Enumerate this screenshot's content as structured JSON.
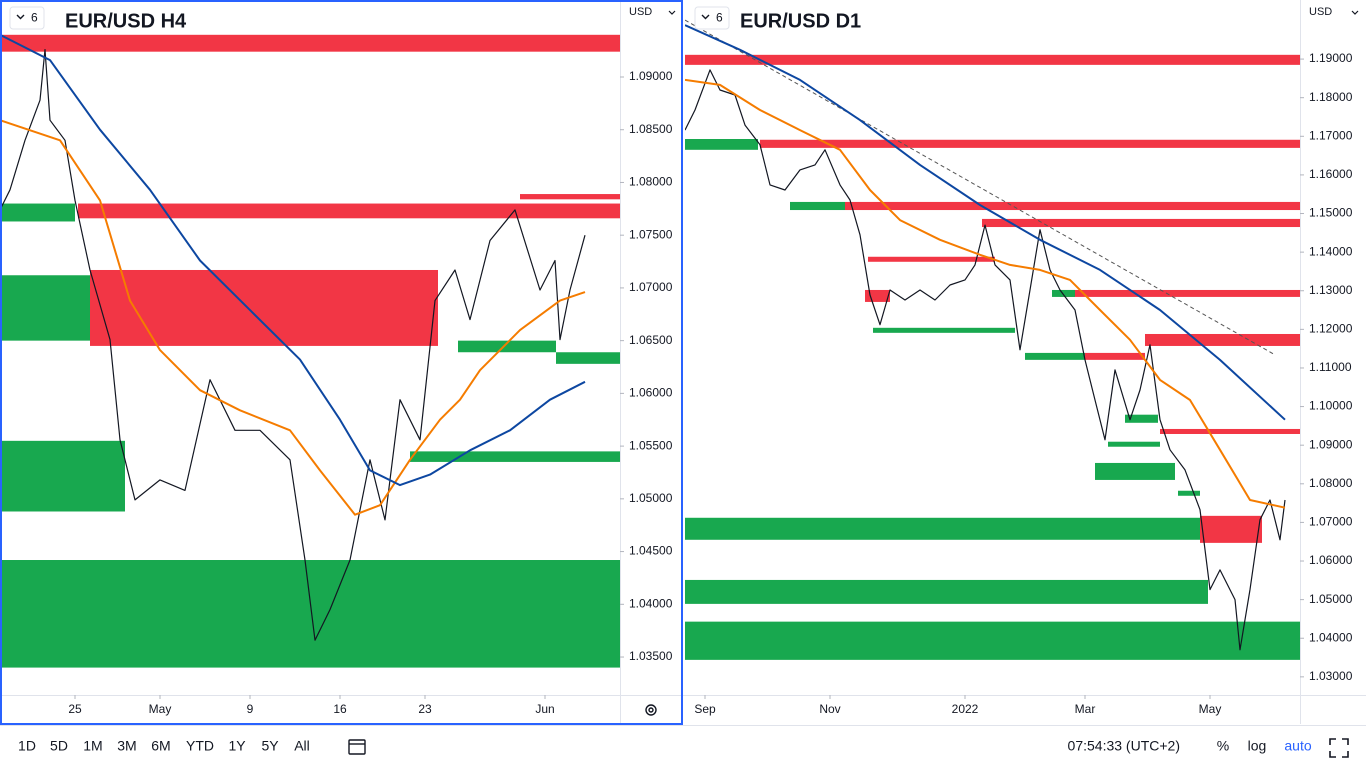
{
  "chart_data": [
    {
      "type": "line",
      "title": "EUR/USD H4",
      "badge": "6",
      "currency": "USD",
      "xlim": [
        0,
        124
      ],
      "xticks": [
        {
          "value": 15,
          "label": "25"
        },
        {
          "value": 32,
          "label": "May"
        },
        {
          "value": 50,
          "label": "9"
        },
        {
          "value": 68,
          "label": "16"
        },
        {
          "value": 85,
          "label": "23"
        },
        {
          "value": 109,
          "label": "Jun"
        }
      ],
      "ylim": [
        1.0314,
        1.0973
      ],
      "yticks": [
        {
          "value": 1.035,
          "label": "1.03500"
        },
        {
          "value": 1.04,
          "label": "1.04000"
        },
        {
          "value": 1.045,
          "label": "1.04500"
        },
        {
          "value": 1.05,
          "label": "1.05000"
        },
        {
          "value": 1.055,
          "label": "1.05500"
        },
        {
          "value": 1.06,
          "label": "1.06000"
        },
        {
          "value": 1.065,
          "label": "1.06500"
        },
        {
          "value": 1.07,
          "label": "1.07000"
        },
        {
          "value": 1.075,
          "label": "1.07500"
        },
        {
          "value": 1.08,
          "label": "1.08000"
        },
        {
          "value": 1.085,
          "label": "1.08500"
        },
        {
          "value": 1.09,
          "label": "1.09000"
        }
      ],
      "series": [
        {
          "color": "#131722",
          "x": [
            0,
            2,
            5,
            8,
            9,
            10,
            13,
            15,
            18,
            22,
            24,
            27,
            32,
            37,
            42,
            47,
            52,
            58,
            61,
            63,
            66,
            70,
            74,
            77,
            80,
            84,
            87,
            91,
            94,
            98,
            103,
            108,
            111,
            112,
            114,
            117
          ],
          "values": [
            1.0774,
            1.0793,
            1.084,
            1.0878,
            1.0926,
            1.0859,
            1.084,
            1.0783,
            1.0717,
            1.0651,
            1.0556,
            1.0499,
            1.0518,
            1.0508,
            1.0613,
            1.0565,
            1.0565,
            1.0537,
            1.0442,
            1.0366,
            1.0395,
            1.0442,
            1.0537,
            1.048,
            1.0594,
            1.0556,
            1.0688,
            1.0717,
            1.067,
            1.0745,
            1.0774,
            1.0698,
            1.0726,
            1.0651,
            1.0698,
            1.075
          ]
        },
        {
          "color": "#f57c00",
          "x": [
            0,
            12,
            20,
            26,
            32,
            40,
            48,
            58,
            64,
            71,
            76,
            82,
            88,
            92,
            96,
            104,
            112,
            117
          ],
          "values": [
            1.0859,
            1.084,
            1.0783,
            1.0688,
            1.0641,
            1.0603,
            1.0584,
            1.0565,
            1.0527,
            1.0485,
            1.0494,
            1.0537,
            1.0575,
            1.0594,
            1.0622,
            1.066,
            1.0688,
            1.0696
          ]
        },
        {
          "color": "#0d47a1",
          "x": [
            0,
            10,
            20,
            30,
            40,
            50,
            60,
            68,
            74,
            80,
            86,
            94,
            102,
            110,
            117
          ],
          "values": [
            1.094,
            1.0916,
            1.085,
            1.0793,
            1.0726,
            1.0679,
            1.0632,
            1.0575,
            1.0527,
            1.0513,
            1.0523,
            1.0546,
            1.0565,
            1.0594,
            1.0611
          ]
        }
      ],
      "zones": [
        {
          "color": "#f23645",
          "x": [
            0,
            124
          ],
          "y": [
            1.0924,
            1.094
          ]
        },
        {
          "color": "#f23645",
          "x": [
            104,
            124
          ],
          "y": [
            1.0784,
            1.0789
          ]
        },
        {
          "color": "#f23645",
          "x": [
            15.6,
            124
          ],
          "y": [
            1.0766,
            1.078
          ]
        },
        {
          "color": "#18a84f",
          "x": [
            0,
            15
          ],
          "y": [
            1.0763,
            1.078
          ]
        },
        {
          "color": "#f23645",
          "x": [
            18,
            87.6
          ],
          "y": [
            1.0645,
            1.0717
          ]
        },
        {
          "color": "#18a84f",
          "x": [
            0,
            18
          ],
          "y": [
            1.065,
            1.0712
          ]
        },
        {
          "color": "#18a84f",
          "x": [
            91.6,
            111.2
          ],
          "y": [
            1.0639,
            1.065
          ]
        },
        {
          "color": "#18a84f",
          "x": [
            111.2,
            124
          ],
          "y": [
            1.0628,
            1.0639
          ]
        },
        {
          "color": "#18a84f",
          "x": [
            0,
            25
          ],
          "y": [
            1.0488,
            1.0555
          ]
        },
        {
          "color": "#18a84f",
          "x": [
            82,
            124
          ],
          "y": [
            1.0535,
            1.0545
          ]
        },
        {
          "color": "#18a84f",
          "x": [
            0,
            124
          ],
          "y": [
            1.034,
            1.0442
          ]
        }
      ]
    },
    {
      "type": "line",
      "title": "EUR/USD D1",
      "badge": "6",
      "currency": "USD",
      "xlim": [
        0,
        123
      ],
      "xticks": [
        {
          "value": 4,
          "label": "Sep"
        },
        {
          "value": 29,
          "label": "Nov"
        },
        {
          "value": 56,
          "label": "2022"
        },
        {
          "value": 80,
          "label": "Mar"
        },
        {
          "value": 105,
          "label": "May"
        }
      ],
      "ylim": [
        1.0253,
        1.2053
      ],
      "yticks": [
        {
          "value": 1.03,
          "label": "1.03000"
        },
        {
          "value": 1.04,
          "label": "1.04000"
        },
        {
          "value": 1.05,
          "label": "1.05000"
        },
        {
          "value": 1.06,
          "label": "1.06000"
        },
        {
          "value": 1.07,
          "label": "1.07000"
        },
        {
          "value": 1.08,
          "label": "1.08000"
        },
        {
          "value": 1.09,
          "label": "1.09000"
        },
        {
          "value": 1.1,
          "label": "1.10000"
        },
        {
          "value": 1.11,
          "label": "1.11000"
        },
        {
          "value": 1.12,
          "label": "1.12000"
        },
        {
          "value": 1.13,
          "label": "1.13000"
        },
        {
          "value": 1.14,
          "label": "1.14000"
        },
        {
          "value": 1.15,
          "label": "1.15000"
        },
        {
          "value": 1.16,
          "label": "1.16000"
        },
        {
          "value": 1.17,
          "label": "1.17000"
        },
        {
          "value": 1.18,
          "label": "1.18000"
        },
        {
          "value": 1.19,
          "label": "1.19000"
        }
      ],
      "series": [
        {
          "color": "#131722",
          "x": [
            0,
            2,
            5,
            7,
            10,
            12,
            15,
            17,
            20,
            23,
            26,
            28,
            31,
            33,
            35,
            37,
            39,
            41,
            44,
            47,
            50,
            53,
            56,
            58,
            60,
            62,
            65,
            67,
            69,
            71,
            73,
            75,
            78,
            80,
            82,
            84,
            86,
            89,
            91,
            93,
            95,
            97,
            100,
            103,
            105,
            107,
            110,
            111,
            113,
            115,
            117,
            119,
            120
          ],
          "values": [
            1.1716,
            1.1768,
            1.1872,
            1.182,
            1.1807,
            1.1729,
            1.1678,
            1.1574,
            1.1561,
            1.1613,
            1.1626,
            1.1665,
            1.1574,
            1.1535,
            1.1445,
            1.1289,
            1.1212,
            1.1302,
            1.1276,
            1.1302,
            1.1276,
            1.1315,
            1.1328,
            1.1367,
            1.147,
            1.1367,
            1.1328,
            1.1147,
            1.1302,
            1.1458,
            1.1354,
            1.1302,
            1.125,
            1.1121,
            1.1017,
            1.0914,
            1.1095,
            1.0966,
            1.1043,
            1.116,
            1.0966,
            1.0888,
            1.0836,
            1.0733,
            1.0526,
            1.0577,
            1.05,
            1.037,
            1.0526,
            1.0707,
            1.0758,
            1.0655,
            1.0758
          ]
        },
        {
          "color": "#f57c00",
          "x": [
            0,
            7,
            15,
            23,
            31,
            37,
            43,
            51,
            59,
            65,
            71,
            77,
            83,
            89,
            95,
            101,
            107,
            113,
            120
          ],
          "values": [
            1.1846,
            1.1833,
            1.1768,
            1.1716,
            1.1665,
            1.1561,
            1.1483,
            1.1432,
            1.1393,
            1.1367,
            1.1354,
            1.1328,
            1.125,
            1.1173,
            1.1069,
            1.1017,
            1.0888,
            1.0758,
            1.0738
          ]
        },
        {
          "color": "#0d47a1",
          "x": [
            0,
            11,
            23,
            35,
            47,
            59,
            71,
            83,
            95,
            107,
            120
          ],
          "values": [
            1.1988,
            1.1924,
            1.1846,
            1.1742,
            1.1626,
            1.1522,
            1.1432,
            1.1354,
            1.125,
            1.1121,
            1.0966
          ]
        }
      ],
      "trendline": {
        "color": "#555555",
        "x": [
          0,
          118
        ],
        "y": [
          1.2001,
          1.1134
        ]
      },
      "zones": [
        {
          "color": "#f23645",
          "x": [
            0,
            123
          ],
          "y": [
            1.1885,
            1.1911
          ]
        },
        {
          "color": "#18a84f",
          "x": [
            0,
            14.6
          ],
          "y": [
            1.1665,
            1.1693
          ]
        },
        {
          "color": "#f23645",
          "x": [
            15,
            123
          ],
          "y": [
            1.167,
            1.1691
          ]
        },
        {
          "color": "#18a84f",
          "x": [
            21,
            32
          ],
          "y": [
            1.1509,
            1.153
          ]
        },
        {
          "color": "#f23645",
          "x": [
            32,
            123
          ],
          "y": [
            1.1509,
            1.153
          ]
        },
        {
          "color": "#f23645",
          "x": [
            59.4,
            123
          ],
          "y": [
            1.1465,
            1.1486
          ]
        },
        {
          "color": "#f23645",
          "x": [
            36.6,
            62
          ],
          "y": [
            1.1375,
            1.1388
          ]
        },
        {
          "color": "#f23645",
          "x": [
            36,
            41
          ],
          "y": [
            1.1271,
            1.1302
          ]
        },
        {
          "color": "#f23645",
          "x": [
            75,
            123
          ],
          "y": [
            1.1284,
            1.1302
          ]
        },
        {
          "color": "#18a84f",
          "x": [
            73.4,
            78
          ],
          "y": [
            1.1284,
            1.1302
          ]
        },
        {
          "color": "#18a84f",
          "x": [
            37.6,
            66
          ],
          "y": [
            1.1191,
            1.1204
          ]
        },
        {
          "color": "#f23645",
          "x": [
            92,
            123
          ],
          "y": [
            1.1157,
            1.1188
          ]
        },
        {
          "color": "#18a84f",
          "x": [
            68,
            80
          ],
          "y": [
            1.1121,
            1.1139
          ]
        },
        {
          "color": "#f23645",
          "x": [
            80,
            92
          ],
          "y": [
            1.1121,
            1.1139
          ]
        },
        {
          "color": "#18a84f",
          "x": [
            88,
            94.6
          ],
          "y": [
            1.0958,
            1.0979
          ]
        },
        {
          "color": "#f23645",
          "x": [
            95,
            123
          ],
          "y": [
            1.0929,
            1.0942
          ]
        },
        {
          "color": "#18a84f",
          "x": [
            84.6,
            95
          ],
          "y": [
            1.0896,
            1.0909
          ]
        },
        {
          "color": "#18a84f",
          "x": [
            82,
            98
          ],
          "y": [
            1.081,
            1.0854
          ]
        },
        {
          "color": "#18a84f",
          "x": [
            98.6,
            103
          ],
          "y": [
            1.0769,
            1.0782
          ]
        },
        {
          "color": "#18a84f",
          "x": [
            0,
            103
          ],
          "y": [
            1.0655,
            1.0712
          ]
        },
        {
          "color": "#f23645",
          "x": [
            103,
            115.4
          ],
          "y": [
            1.0647,
            1.0717
          ]
        },
        {
          "color": "#18a84f",
          "x": [
            0,
            104.6
          ],
          "y": [
            1.0489,
            1.0551
          ]
        },
        {
          "color": "#18a84f",
          "x": [
            0,
            123
          ],
          "y": [
            1.0344,
            1.0443
          ]
        }
      ]
    }
  ],
  "toolbar": {
    "ranges": [
      "1D",
      "5D",
      "1M",
      "3M",
      "6M",
      "YTD",
      "1Y",
      "5Y",
      "All"
    ],
    "clock": "07:54:33 (UTC+2)",
    "options": [
      "%",
      "log",
      "auto"
    ]
  }
}
